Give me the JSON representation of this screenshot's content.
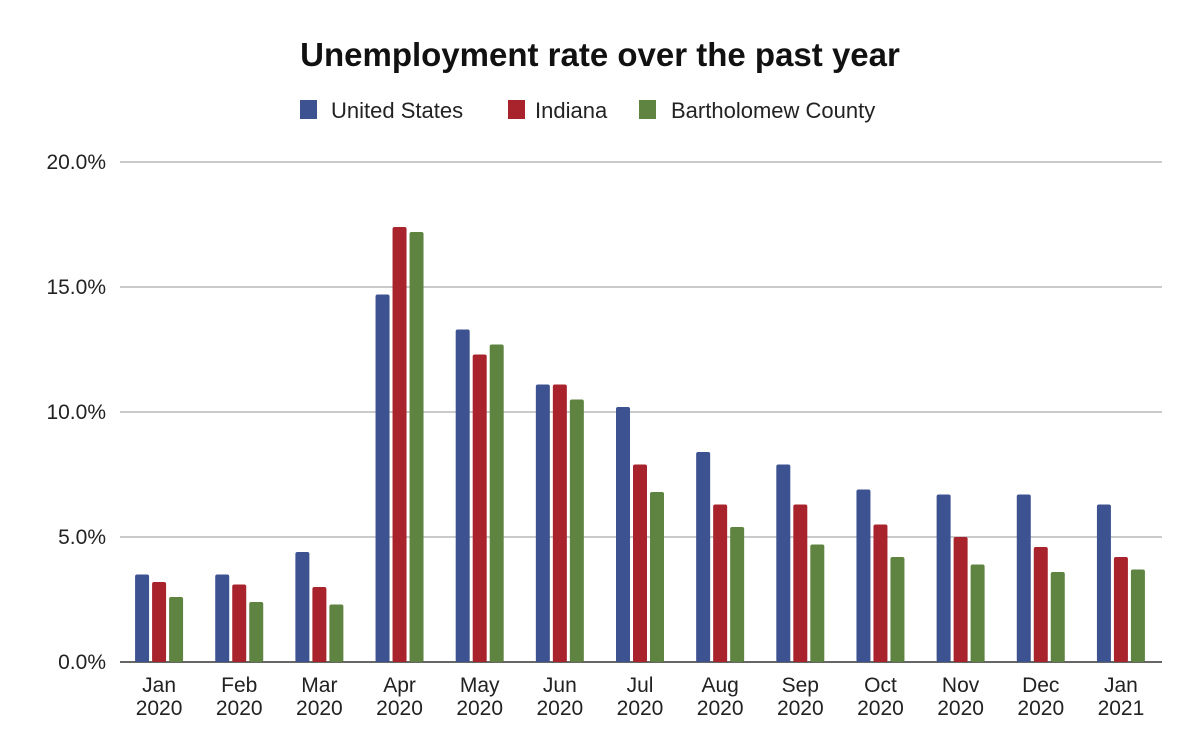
{
  "chart_data": {
    "type": "bar",
    "title": "Unemployment rate over the past year",
    "categories": [
      [
        "Jan",
        "2020"
      ],
      [
        "Feb",
        "2020"
      ],
      [
        "Mar",
        "2020"
      ],
      [
        "Apr",
        "2020"
      ],
      [
        "May",
        "2020"
      ],
      [
        "Jun",
        "2020"
      ],
      [
        "Jul",
        "2020"
      ],
      [
        "Aug",
        "2020"
      ],
      [
        "Sep",
        "2020"
      ],
      [
        "Oct",
        "2020"
      ],
      [
        "Nov",
        "2020"
      ],
      [
        "Dec",
        "2020"
      ],
      [
        "Jan",
        "2021"
      ]
    ],
    "series": [
      {
        "name": "United States",
        "color": "#3d5291",
        "values": [
          3.5,
          3.5,
          4.4,
          14.7,
          13.3,
          11.1,
          10.2,
          8.4,
          7.9,
          6.9,
          6.7,
          6.7,
          6.3
        ]
      },
      {
        "name": "Indiana",
        "color": "#a9232d",
        "values": [
          3.2,
          3.1,
          3.0,
          17.4,
          12.3,
          11.1,
          7.9,
          6.3,
          6.3,
          5.5,
          5.0,
          4.6,
          4.2
        ]
      },
      {
        "name": "Bartholomew County",
        "color": "#5f8442",
        "values": [
          2.6,
          2.4,
          2.3,
          17.2,
          12.7,
          10.5,
          6.8,
          5.4,
          4.7,
          4.2,
          3.9,
          3.6,
          3.7
        ]
      }
    ],
    "yticks": [
      "0.0%",
      "5.0%",
      "10.0%",
      "15.0%",
      "20.0%"
    ],
    "ylim": [
      0,
      20
    ],
    "grid": true,
    "legend": "top-center",
    "xlabel": "",
    "ylabel": ""
  }
}
